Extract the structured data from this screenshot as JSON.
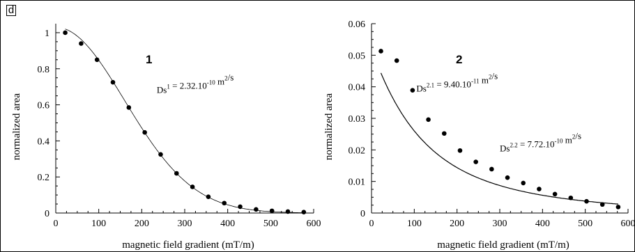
{
  "figure": {
    "panel_label": "d"
  },
  "chart_data": [
    {
      "type": "scatter",
      "panel_number": "1",
      "xlabel": "magnetic field gradient (mT/m)",
      "ylabel": "normalized area",
      "xlim": [
        0,
        600
      ],
      "ylim": [
        0,
        1.05
      ],
      "x_ticks": [
        0,
        100,
        200,
        300,
        400,
        500,
        600
      ],
      "y_ticks": [
        0,
        0.2,
        0.4,
        0.6,
        0.8,
        1
      ],
      "y_tick_labels": [
        "0",
        "0.2",
        "0.4",
        "0.6",
        "0.8",
        "1"
      ],
      "annotations": [
        {
          "base": "Ds",
          "sup1": "1",
          "mid": " = 2.32.10",
          "sup2": "-10",
          "unit": " m",
          "sup3": "2",
          "tail": "/s",
          "ax": 235,
          "ay": 0.665
        }
      ],
      "series": [
        {
          "kind": "points",
          "x": [
            22,
            59,
            96,
            133,
            170,
            207,
            244,
            281,
            318,
            355,
            392,
            429,
            466,
            503,
            540,
            577
          ],
          "y": [
            1.0,
            0.94,
            0.85,
            0.725,
            0.585,
            0.447,
            0.325,
            0.22,
            0.145,
            0.09,
            0.055,
            0.035,
            0.02,
            0.012,
            0.008,
            0.005
          ]
        },
        {
          "kind": "fit",
          "model": "gaussian",
          "amplitude": 1.03,
          "sigma": 160
        }
      ],
      "grid": false
    },
    {
      "type": "scatter",
      "panel_number": "2",
      "xlabel": "magnetic field gradient (mT/m)",
      "ylabel": "normalized area",
      "xlim": [
        0,
        600
      ],
      "ylim": [
        0,
        0.06
      ],
      "x_ticks": [
        0,
        100,
        200,
        300,
        400,
        500,
        600
      ],
      "y_ticks": [
        0,
        0.01,
        0.02,
        0.03,
        0.04,
        0.05,
        0.06
      ],
      "y_tick_labels": [
        "0",
        "0.01",
        "0.02",
        "0.03",
        "0.04",
        "0.05",
        "0.06"
      ],
      "annotations": [
        {
          "base": "Ds",
          "sup1": "2.1",
          "mid": " = 9.40.10",
          "sup2": "-11",
          "unit": " m",
          "sup3": "2",
          "tail": "/s",
          "ax": 105,
          "ay": 0.0385
        },
        {
          "base": "Ds",
          "sup1": "2.2",
          "mid": " = 7.72.10",
          "sup2": "-10",
          "unit": " m",
          "sup3": "2",
          "tail": "/s",
          "ax": 300,
          "ay": 0.0195
        }
      ],
      "series": [
        {
          "kind": "points",
          "x": [
            22,
            59,
            96,
            133,
            170,
            207,
            244,
            281,
            318,
            355,
            392,
            429,
            466,
            503,
            540,
            577
          ],
          "y": [
            0.0513,
            0.0483,
            0.0389,
            0.0296,
            0.0252,
            0.0198,
            0.0162,
            0.0139,
            0.0112,
            0.0095,
            0.0076,
            0.006,
            0.0048,
            0.0037,
            0.0027,
            0.0019
          ]
        },
        {
          "kind": "fit",
          "model": "biexponential",
          "a1": 0.02,
          "b1": 290,
          "a2": 0.0322,
          "b2": 100
        }
      ],
      "grid": false
    }
  ]
}
